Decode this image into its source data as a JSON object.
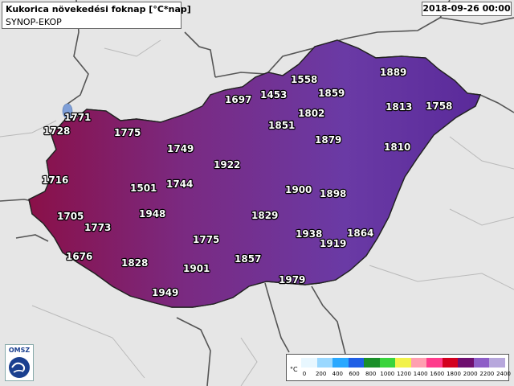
{
  "header": {
    "title": "Kukorica növekedési foknap [°C*nap]",
    "source": "SYNOP-EKOP",
    "datetime": "2018-09-26 00:00"
  },
  "logo": {
    "text": "OMSZ"
  },
  "legend": {
    "unit": "°C",
    "ticks": [
      "0",
      "200",
      "400",
      "600",
      "800",
      "1000",
      "1200",
      "1400",
      "1600",
      "1800",
      "2000",
      "2200",
      "2400"
    ],
    "colors": [
      "#e8f7ff",
      "#9ad8ff",
      "#29a8ff",
      "#1f5fe6",
      "#1a8f2a",
      "#39d43c",
      "#f2f24a",
      "#ff9fb0",
      "#ff3c8c",
      "#d3001f",
      "#6f0f6f",
      "#8e5ec7",
      "#b7a7dc"
    ]
  },
  "stations": [
    {
      "name": "1771"
    },
    {
      "name": "1728"
    },
    {
      "name": "1775"
    },
    {
      "name": "1749"
    },
    {
      "name": "1716"
    },
    {
      "name": "1501"
    },
    {
      "name": "1744"
    },
    {
      "name": "1705"
    },
    {
      "name": "1948"
    },
    {
      "name": "1773"
    },
    {
      "name": "1676"
    },
    {
      "name": "1828"
    },
    {
      "name": "1775"
    },
    {
      "name": "1901"
    },
    {
      "name": "1949"
    },
    {
      "name": "1922"
    },
    {
      "name": "1829"
    },
    {
      "name": "1857"
    },
    {
      "name": "1697"
    },
    {
      "name": "1453"
    },
    {
      "name": "1558"
    },
    {
      "name": "1859"
    },
    {
      "name": "1802"
    },
    {
      "name": "1851"
    },
    {
      "name": "1889"
    },
    {
      "name": "1813"
    },
    {
      "name": "1758"
    },
    {
      "name": "1879"
    },
    {
      "name": "1810"
    },
    {
      "name": "1900"
    },
    {
      "name": "1898"
    },
    {
      "name": "1938"
    },
    {
      "name": "1919"
    },
    {
      "name": "1864"
    },
    {
      "name": "1979"
    }
  ]
}
